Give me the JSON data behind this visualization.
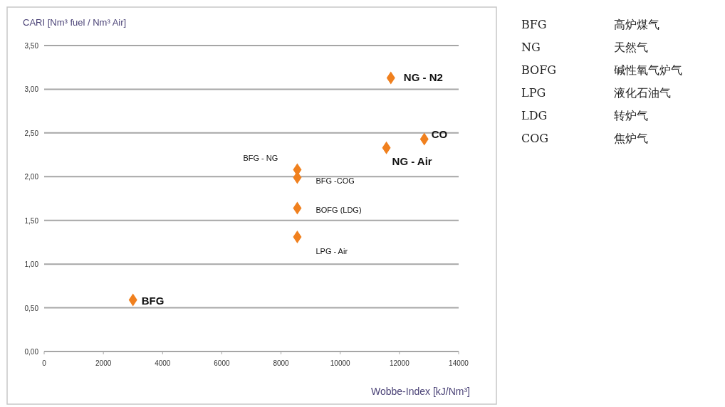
{
  "chart_data": {
    "type": "scatter",
    "xlabel": "Wobbe-Index [kJ/Nm³]",
    "ylabel": "CARI [Nm³ fuel / Nm³ Air]",
    "series": [
      {
        "color": "#f0801e",
        "x": [
          3000,
          8550,
          8550,
          8550,
          8550,
          11560,
          12840,
          11710
        ],
        "values": [
          0.59,
          1.31,
          1.64,
          1.99,
          2.08,
          2.33,
          2.43,
          3.13
        ]
      }
    ],
    "marker": "diamond",
    "grid": "y",
    "xlim": [
      0,
      14000
    ],
    "xticks": [
      0,
      2000,
      4000,
      6000,
      8000,
      10000,
      12000,
      14000
    ],
    "ylim": [
      0,
      3.5
    ],
    "yticks": [
      {
        "value": 0,
        "label": "0,00"
      },
      {
        "value": 0.5,
        "label": "0,50"
      },
      {
        "value": 1,
        "label": "1,00"
      },
      {
        "value": 1.5,
        "label": "1,50"
      },
      {
        "value": 2,
        "label": "2,00"
      },
      {
        "value": 2.5,
        "label": "2,50"
      },
      {
        "value": 3,
        "label": "3,00"
      },
      {
        "value": 3.5,
        "label": "3,50"
      }
    ],
    "annotations": [
      {
        "text": "BFG",
        "x": 3000,
        "y": 0.59
      },
      {
        "text": "LPG - Air",
        "x": 8550,
        "y": 1.31
      },
      {
        "text": "BOFG (LDG)",
        "x": 8550,
        "y": 1.64
      },
      {
        "text": "BFG -COG",
        "x": 8550,
        "y": 1.99
      },
      {
        "text": "BFG - NG",
        "x": 8550,
        "y": 2.08
      },
      {
        "text": "NG - Air",
        "x": 11560,
        "y": 2.33
      },
      {
        "text": "CO",
        "x": 12840,
        "y": 2.43
      },
      {
        "text": "NG - N2",
        "x": 11710,
        "y": 3.13
      },
      "BFG",
      "高炉煤气",
      "NG",
      "天然气",
      "BOFG",
      "碱性氧气炉气",
      "LPG",
      "液化石油气",
      "LDG",
      "转炉气",
      "COG",
      "焦炉气"
    ]
  }
}
